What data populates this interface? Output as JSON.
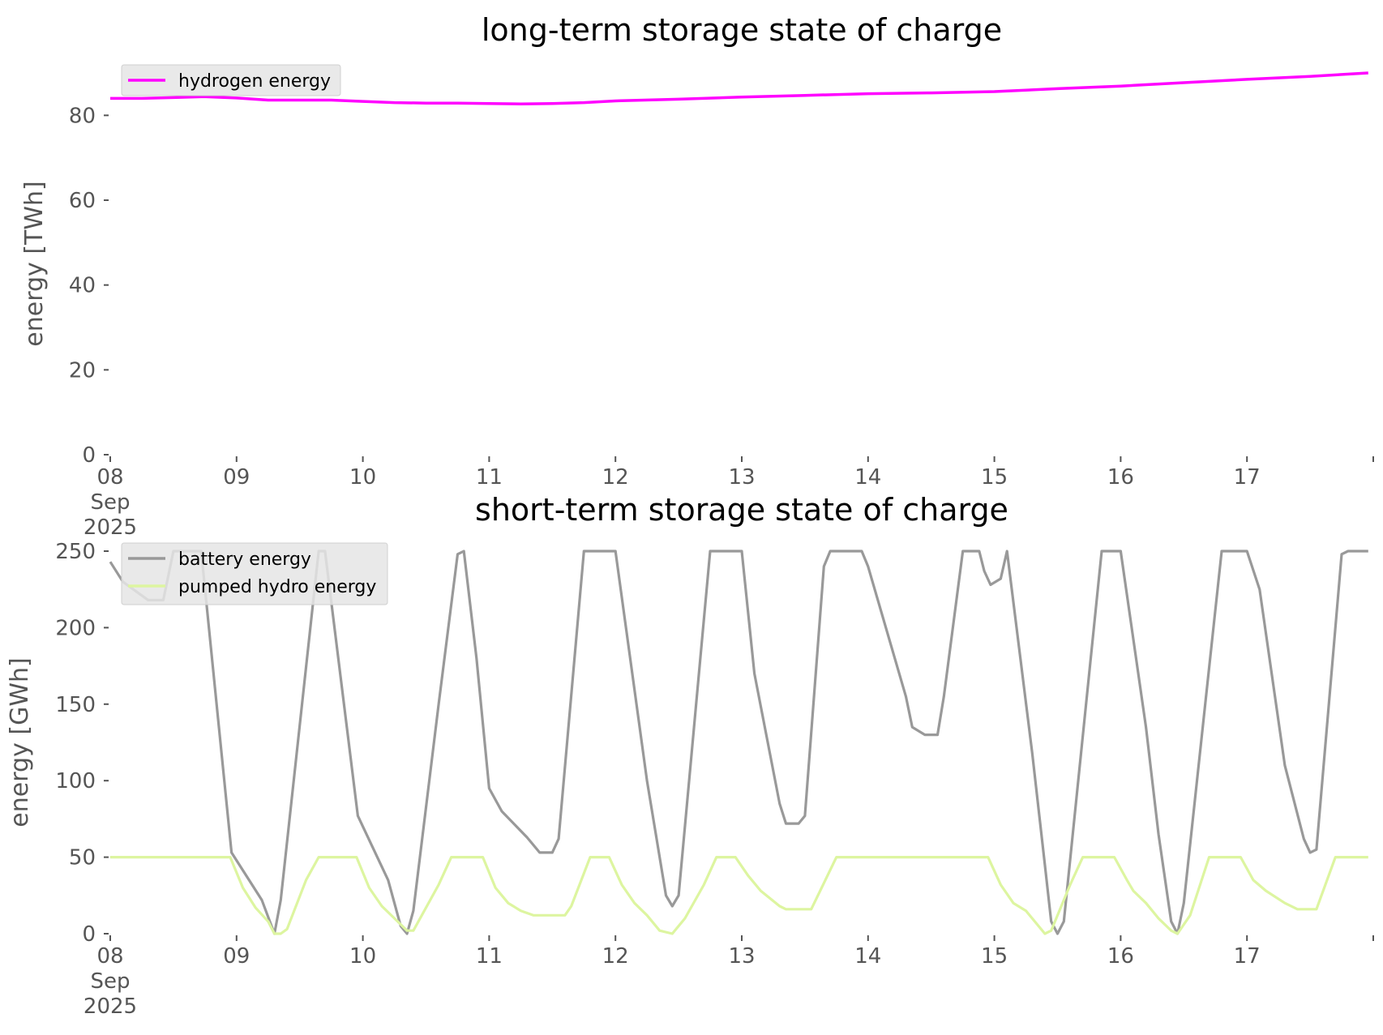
{
  "chart_data": [
    {
      "type": "line",
      "title": "long-term storage state of charge",
      "ylabel": "energy [TWh]",
      "xlabel": "",
      "ylim": [
        0,
        90
      ],
      "yticks": [
        0,
        20,
        40,
        60,
        80
      ],
      "xlim": [
        0,
        10
      ],
      "xticks": [
        {
          "x": 0,
          "lines": [
            "08",
            "Sep",
            "2025"
          ]
        },
        {
          "x": 1,
          "lines": [
            "09"
          ]
        },
        {
          "x": 2,
          "lines": [
            "10"
          ]
        },
        {
          "x": 3,
          "lines": [
            "11"
          ]
        },
        {
          "x": 4,
          "lines": [
            "12"
          ]
        },
        {
          "x": 5,
          "lines": [
            "13"
          ]
        },
        {
          "x": 6,
          "lines": [
            "14"
          ]
        },
        {
          "x": 7,
          "lines": [
            "15"
          ]
        },
        {
          "x": 8,
          "lines": [
            "16"
          ]
        },
        {
          "x": 9,
          "lines": [
            "17"
          ]
        }
      ],
      "grid": false,
      "legend_position": "top-left",
      "series": [
        {
          "name": "hydrogen energy",
          "color": "#ff00ff",
          "points": [
            [
              0,
              84.0
            ],
            [
              0.25,
              84.0
            ],
            [
              0.5,
              84.2
            ],
            [
              0.75,
              84.4
            ],
            [
              1.0,
              84.1
            ],
            [
              1.25,
              83.6
            ],
            [
              1.5,
              83.6
            ],
            [
              1.75,
              83.6
            ],
            [
              2.0,
              83.3
            ],
            [
              2.25,
              83.0
            ],
            [
              2.5,
              82.9
            ],
            [
              2.75,
              82.9
            ],
            [
              3.0,
              82.8
            ],
            [
              3.25,
              82.7
            ],
            [
              3.5,
              82.8
            ],
            [
              3.75,
              83.0
            ],
            [
              4.0,
              83.4
            ],
            [
              4.5,
              83.8
            ],
            [
              5.0,
              84.3
            ],
            [
              5.5,
              84.7
            ],
            [
              6.0,
              85.1
            ],
            [
              6.5,
              85.3
            ],
            [
              7.0,
              85.6
            ],
            [
              7.5,
              86.3
            ],
            [
              8.0,
              86.9
            ],
            [
              8.5,
              87.7
            ],
            [
              9.0,
              88.5
            ],
            [
              9.5,
              89.2
            ],
            [
              9.96,
              90.0
            ]
          ]
        }
      ]
    },
    {
      "type": "line",
      "title": "short-term storage state of charge",
      "ylabel": "energy [GWh]",
      "xlabel": "",
      "ylim": [
        0,
        250
      ],
      "yticks": [
        0,
        50,
        100,
        150,
        200,
        250
      ],
      "xlim": [
        0,
        10
      ],
      "xticks": [
        {
          "x": 0,
          "lines": [
            "08",
            "Sep",
            "2025"
          ]
        },
        {
          "x": 1,
          "lines": [
            "09"
          ]
        },
        {
          "x": 2,
          "lines": [
            "10"
          ]
        },
        {
          "x": 3,
          "lines": [
            "11"
          ]
        },
        {
          "x": 4,
          "lines": [
            "12"
          ]
        },
        {
          "x": 5,
          "lines": [
            "13"
          ]
        },
        {
          "x": 6,
          "lines": [
            "14"
          ]
        },
        {
          "x": 7,
          "lines": [
            "15"
          ]
        },
        {
          "x": 8,
          "lines": [
            "16"
          ]
        },
        {
          "x": 9,
          "lines": [
            "17"
          ]
        }
      ],
      "grid": false,
      "legend_position": "top-left",
      "series": [
        {
          "name": "battery energy",
          "color": "#999999",
          "points": [
            [
              0,
              243
            ],
            [
              0.1,
              230
            ],
            [
              0.3,
              218
            ],
            [
              0.42,
              218
            ],
            [
              0.5,
              250
            ],
            [
              0.72,
              250
            ],
            [
              0.96,
              53
            ],
            [
              1.2,
              22
            ],
            [
              1.3,
              0
            ],
            [
              1.35,
              22
            ],
            [
              1.65,
              250
            ],
            [
              1.7,
              250
            ],
            [
              1.96,
              77
            ],
            [
              2.2,
              35
            ],
            [
              2.3,
              5
            ],
            [
              2.35,
              0
            ],
            [
              2.4,
              15
            ],
            [
              2.6,
              150
            ],
            [
              2.75,
              248
            ],
            [
              2.8,
              250
            ],
            [
              2.9,
              180
            ],
            [
              3.0,
              95
            ],
            [
              3.1,
              80
            ],
            [
              3.3,
              63
            ],
            [
              3.4,
              53
            ],
            [
              3.5,
              53
            ],
            [
              3.55,
              62
            ],
            [
              3.75,
              250
            ],
            [
              4.0,
              250
            ],
            [
              4.25,
              100
            ],
            [
              4.4,
              25
            ],
            [
              4.45,
              18
            ],
            [
              4.5,
              25
            ],
            [
              4.75,
              250
            ],
            [
              5.0,
              250
            ],
            [
              5.1,
              170
            ],
            [
              5.3,
              85
            ],
            [
              5.35,
              72
            ],
            [
              5.45,
              72
            ],
            [
              5.5,
              77
            ],
            [
              5.65,
              240
            ],
            [
              5.7,
              250
            ],
            [
              5.95,
              250
            ],
            [
              6.0,
              240
            ],
            [
              6.3,
              155
            ],
            [
              6.35,
              135
            ],
            [
              6.45,
              130
            ],
            [
              6.55,
              130
            ],
            [
              6.6,
              155
            ],
            [
              6.75,
              250
            ],
            [
              6.88,
              250
            ],
            [
              6.92,
              237
            ],
            [
              6.97,
              228
            ],
            [
              7.05,
              232
            ],
            [
              7.1,
              250
            ],
            [
              7.3,
              118
            ],
            [
              7.4,
              45
            ],
            [
              7.45,
              8
            ],
            [
              7.5,
              0
            ],
            [
              7.55,
              8
            ],
            [
              7.85,
              250
            ],
            [
              8.0,
              250
            ],
            [
              8.2,
              135
            ],
            [
              8.3,
              65
            ],
            [
              8.4,
              8
            ],
            [
              8.45,
              0
            ],
            [
              8.5,
              20
            ],
            [
              8.8,
              250
            ],
            [
              9.0,
              250
            ],
            [
              9.1,
              225
            ],
            [
              9.3,
              110
            ],
            [
              9.45,
              62
            ],
            [
              9.5,
              53
            ],
            [
              9.55,
              55
            ],
            [
              9.75,
              248
            ],
            [
              9.8,
              250
            ],
            [
              9.96,
              250
            ]
          ]
        },
        {
          "name": "pumped hydro energy",
          "color": "#ddf5a0",
          "points": [
            [
              0,
              50
            ],
            [
              0.95,
              50
            ],
            [
              1.05,
              30
            ],
            [
              1.15,
              17
            ],
            [
              1.25,
              8
            ],
            [
              1.3,
              0
            ],
            [
              1.35,
              0
            ],
            [
              1.4,
              3
            ],
            [
              1.55,
              35
            ],
            [
              1.65,
              50
            ],
            [
              1.95,
              50
            ],
            [
              2.05,
              30
            ],
            [
              2.15,
              18
            ],
            [
              2.25,
              10
            ],
            [
              2.35,
              2
            ],
            [
              2.4,
              2
            ],
            [
              2.6,
              32
            ],
            [
              2.7,
              50
            ],
            [
              2.95,
              50
            ],
            [
              3.05,
              30
            ],
            [
              3.15,
              20
            ],
            [
              3.25,
              15
            ],
            [
              3.35,
              12
            ],
            [
              3.5,
              12
            ],
            [
              3.6,
              12
            ],
            [
              3.65,
              18
            ],
            [
              3.8,
              50
            ],
            [
              3.95,
              50
            ],
            [
              4.05,
              32
            ],
            [
              4.15,
              20
            ],
            [
              4.25,
              12
            ],
            [
              4.35,
              2
            ],
            [
              4.45,
              0
            ],
            [
              4.55,
              10
            ],
            [
              4.7,
              32
            ],
            [
              4.8,
              50
            ],
            [
              4.95,
              50
            ],
            [
              5.05,
              38
            ],
            [
              5.15,
              28
            ],
            [
              5.3,
              18
            ],
            [
              5.35,
              16
            ],
            [
              5.55,
              16
            ],
            [
              5.75,
              50
            ],
            [
              6.95,
              50
            ],
            [
              7.05,
              32
            ],
            [
              7.15,
              20
            ],
            [
              7.25,
              15
            ],
            [
              7.4,
              0
            ],
            [
              7.45,
              2
            ],
            [
              7.6,
              32
            ],
            [
              7.7,
              50
            ],
            [
              7.95,
              50
            ],
            [
              8.05,
              35
            ],
            [
              8.1,
              28
            ],
            [
              8.2,
              20
            ],
            [
              8.3,
              10
            ],
            [
              8.4,
              2
            ],
            [
              8.45,
              0
            ],
            [
              8.55,
              12
            ],
            [
              8.7,
              50
            ],
            [
              8.95,
              50
            ],
            [
              9.05,
              35
            ],
            [
              9.15,
              28
            ],
            [
              9.3,
              20
            ],
            [
              9.4,
              16
            ],
            [
              9.55,
              16
            ],
            [
              9.7,
              50
            ],
            [
              9.96,
              50
            ]
          ]
        }
      ]
    }
  ]
}
